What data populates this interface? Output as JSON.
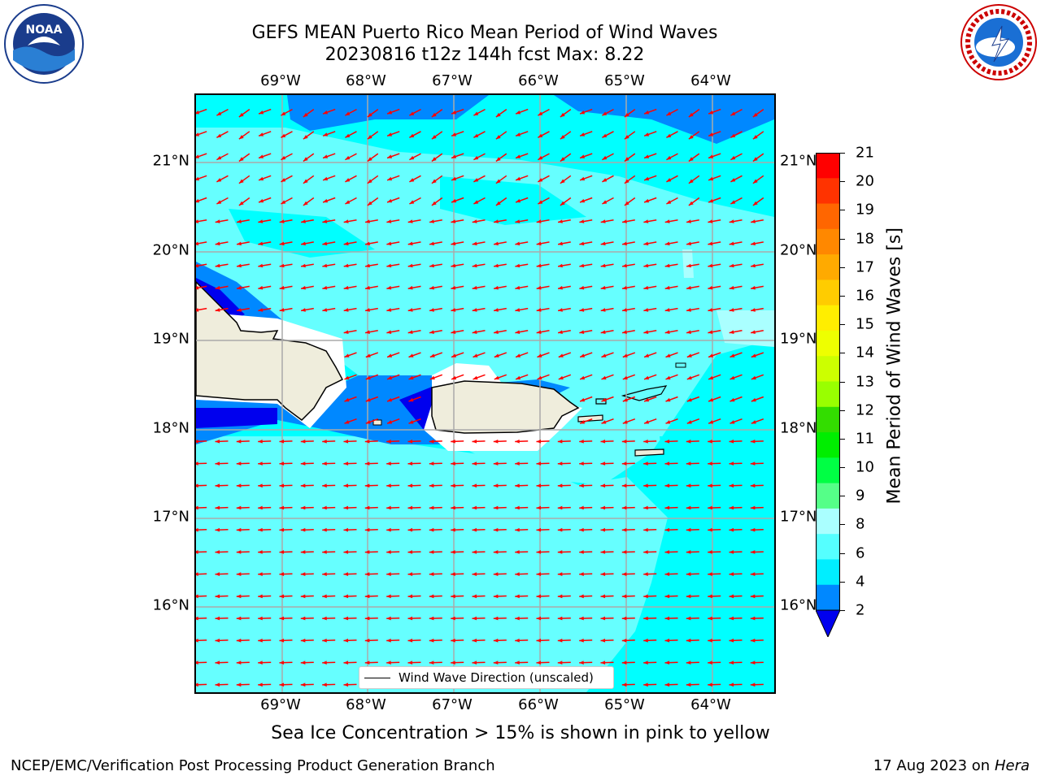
{
  "title": {
    "line1": "GEFS MEAN Puerto Rico Mean Period of Wind Waves",
    "line2": "20230816 t12z 144h fcst   Max: 8.22"
  },
  "logos": {
    "left": "noaa-logo",
    "right": "nws-logo"
  },
  "axes": {
    "lon_labels": [
      "69°W",
      "68°W",
      "67°W",
      "66°W",
      "65°W",
      "64°W"
    ],
    "lat_labels": [
      "21°N",
      "20°N",
      "19°N",
      "18°N",
      "17°N",
      "16°N"
    ]
  },
  "legend": {
    "label": "Wind Wave Direction (unscaled)"
  },
  "colorbar": {
    "label": "Mean Period of Wind Waves [s]",
    "ticks": [
      "21",
      "20",
      "19",
      "18",
      "17",
      "16",
      "15",
      "14",
      "13",
      "12",
      "11",
      "10",
      "9",
      "8",
      "6",
      "4",
      "2"
    ],
    "colors": [
      "#ff0000",
      "#ff3300",
      "#ff6600",
      "#ff8800",
      "#ffaa00",
      "#ffcc00",
      "#ffee00",
      "#eeff00",
      "#ccff00",
      "#99ff00",
      "#33dd00",
      "#00ee00",
      "#00ff44",
      "#55ff88",
      "#aaffff",
      "#55ffff",
      "#00eeff",
      "#0088ff",
      "#0000ee"
    ]
  },
  "subtitle": "Sea Ice Concentration > 15% is shown in pink to yellow",
  "footer": {
    "left": "NCEP/EMC/Verification Post Processing Product Generation Branch",
    "right_prefix": "17 Aug 2023 on",
    "right_machine": "Hera"
  },
  "colors": {
    "sea_base": "#00ffff",
    "sea_light": "#66ffff",
    "sea_pale": "#aaffff",
    "sea_blue": "#0088ff",
    "sea_dark": "#0000ee",
    "land": "#efeddc",
    "arrow": "#ff0000",
    "grid": "#aaaaaa"
  }
}
